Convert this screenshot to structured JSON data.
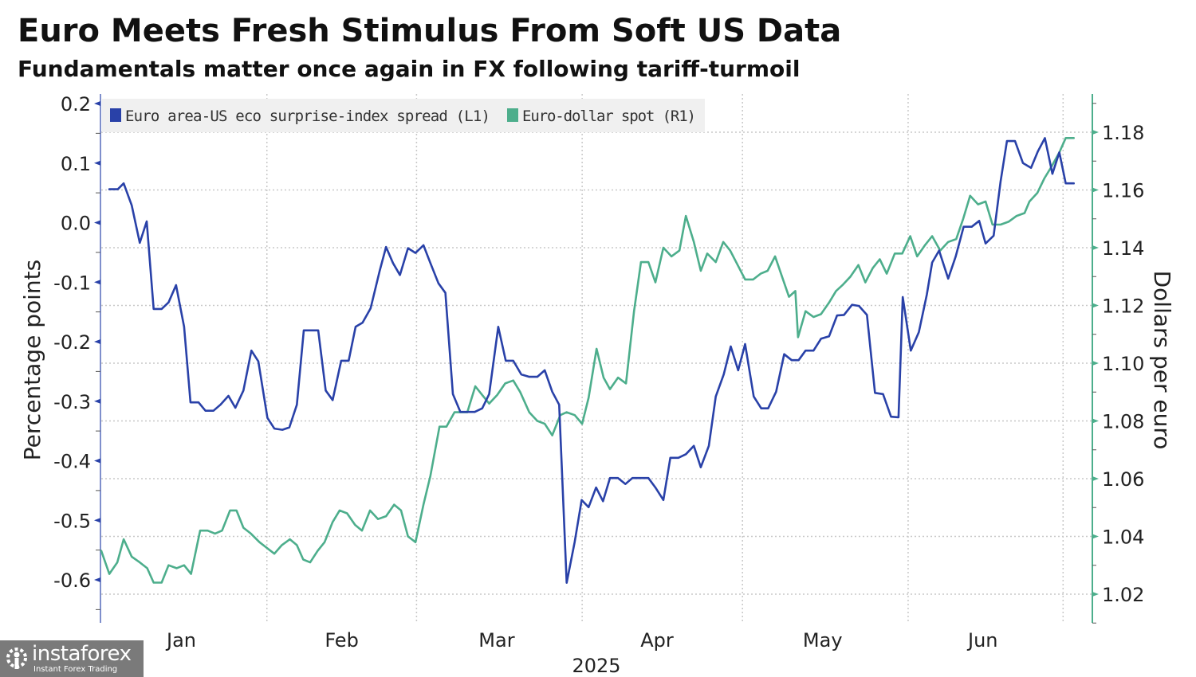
{
  "header": {
    "title": "Euro Meets Fresh Stimulus From Soft US Data",
    "subtitle": "Fundamentals matter once again in FX following tariff-turmoil"
  },
  "watermark": {
    "brand": "instaforex",
    "tagline": "Instant Forex Trading"
  },
  "colors": {
    "series_blue": "#2941a8",
    "series_green": "#4dae8c",
    "gridline": "#c8c8c8",
    "legend_bg": "#f0f0f0"
  },
  "chart_data": {
    "type": "line",
    "title": "Euro Meets Fresh Stimulus From Soft US Data",
    "subtitle": "Fundamentals matter once again in FX following tariff-turmoil",
    "xlabel": "2025",
    "x_unit": "day of year 2025",
    "xlim": [
      0,
      181
    ],
    "x_ticks": [
      {
        "label": "Jan",
        "day": 15
      },
      {
        "label": "Feb",
        "day": 45
      },
      {
        "label": "Mar",
        "day": 74
      },
      {
        "label": "Apr",
        "day": 104
      },
      {
        "label": "May",
        "day": 135
      },
      {
        "label": "Jun",
        "day": 165
      }
    ],
    "x_gridlines_days": [
      31,
      59,
      90,
      120,
      151,
      180
    ],
    "y_left": {
      "label": "Percentage points",
      "ylim": [
        -0.67,
        0.2
      ],
      "ticks": [
        "0.2",
        "0.1",
        "0.0",
        "-0.1",
        "-0.2",
        "-0.3",
        "-0.4",
        "-0.5",
        "-0.6"
      ],
      "tick_values": [
        0.2,
        0.1,
        0.0,
        -0.1,
        -0.2,
        -0.3,
        -0.4,
        -0.5,
        -0.6
      ]
    },
    "y_right": {
      "label": "Dollars per euro",
      "ylim": [
        1.01,
        1.19
      ],
      "ticks": [
        "1.18",
        "1.16",
        "1.14",
        "1.12",
        "1.10",
        "1.08",
        "1.06",
        "1.04",
        "1.02"
      ],
      "tick_values": [
        1.18,
        1.16,
        1.14,
        1.12,
        1.1,
        1.08,
        1.06,
        1.04,
        1.02
      ]
    },
    "grid": true,
    "legend_position": "top-left",
    "series": [
      {
        "name": "Euro area-US eco surprise-index spread (L1)",
        "axis": "left",
        "color": "#2941a8",
        "points": [
          [
            1.5,
            0.056
          ],
          [
            3.1,
            0.056
          ],
          [
            4.2,
            0.066
          ],
          [
            5.7,
            0.029
          ],
          [
            7.2,
            -0.034
          ],
          [
            8.5,
            0.002
          ],
          [
            9.8,
            -0.145
          ],
          [
            11.3,
            -0.145
          ],
          [
            12.6,
            -0.134
          ],
          [
            14.0,
            -0.105
          ],
          [
            15.5,
            -0.175
          ],
          [
            16.7,
            -0.302
          ],
          [
            18.2,
            -0.302
          ],
          [
            19.5,
            -0.316
          ],
          [
            21.0,
            -0.316
          ],
          [
            22.3,
            -0.306
          ],
          [
            23.8,
            -0.291
          ],
          [
            25.1,
            -0.311
          ],
          [
            26.6,
            -0.282
          ],
          [
            28.1,
            -0.215
          ],
          [
            29.4,
            -0.233
          ],
          [
            31.1,
            -0.328
          ],
          [
            32.4,
            -0.346
          ],
          [
            33.9,
            -0.348
          ],
          [
            35.2,
            -0.344
          ],
          [
            36.6,
            -0.306
          ],
          [
            37.9,
            -0.181
          ],
          [
            40.6,
            -0.181
          ],
          [
            42.0,
            -0.282
          ],
          [
            43.3,
            -0.298
          ],
          [
            44.9,
            -0.232
          ],
          [
            46.3,
            -0.232
          ],
          [
            47.6,
            -0.175
          ],
          [
            48.9,
            -0.168
          ],
          [
            50.4,
            -0.144
          ],
          [
            52.1,
            -0.081
          ],
          [
            53.3,
            -0.041
          ],
          [
            54.6,
            -0.068
          ],
          [
            55.9,
            -0.088
          ],
          [
            57.4,
            -0.043
          ],
          [
            58.8,
            -0.051
          ],
          [
            60.3,
            -0.038
          ],
          [
            61.6,
            -0.068
          ],
          [
            63.1,
            -0.102
          ],
          [
            64.4,
            -0.118
          ],
          [
            65.8,
            -0.288
          ],
          [
            67.2,
            -0.318
          ],
          [
            69.9,
            -0.318
          ],
          [
            71.3,
            -0.312
          ],
          [
            72.6,
            -0.288
          ],
          [
            74.3,
            -0.175
          ],
          [
            75.7,
            -0.232
          ],
          [
            77.1,
            -0.232
          ],
          [
            78.6,
            -0.255
          ],
          [
            80.1,
            -0.259
          ],
          [
            81.6,
            -0.259
          ],
          [
            83.0,
            -0.248
          ],
          [
            84.4,
            -0.284
          ],
          [
            85.7,
            -0.306
          ],
          [
            87.1,
            -0.605
          ],
          [
            88.6,
            -0.536
          ],
          [
            89.9,
            -0.466
          ],
          [
            91.2,
            -0.478
          ],
          [
            92.6,
            -0.445
          ],
          [
            93.9,
            -0.468
          ],
          [
            95.2,
            -0.429
          ],
          [
            96.7,
            -0.429
          ],
          [
            98.1,
            -0.439
          ],
          [
            99.4,
            -0.429
          ],
          [
            102.4,
            -0.429
          ],
          [
            103.7,
            -0.445
          ],
          [
            105.2,
            -0.466
          ],
          [
            106.5,
            -0.395
          ],
          [
            108.0,
            -0.395
          ],
          [
            109.4,
            -0.389
          ],
          [
            110.9,
            -0.375
          ],
          [
            112.2,
            -0.411
          ],
          [
            113.7,
            -0.375
          ],
          [
            115.0,
            -0.292
          ],
          [
            116.5,
            -0.255
          ],
          [
            117.8,
            -0.208
          ],
          [
            119.2,
            -0.248
          ],
          [
            120.5,
            -0.204
          ],
          [
            122.1,
            -0.292
          ],
          [
            123.5,
            -0.312
          ],
          [
            124.8,
            -0.312
          ],
          [
            126.3,
            -0.284
          ],
          [
            127.8,
            -0.221
          ],
          [
            129.2,
            -0.231
          ],
          [
            130.5,
            -0.231
          ],
          [
            131.8,
            -0.215
          ],
          [
            133.3,
            -0.215
          ],
          [
            134.7,
            -0.195
          ],
          [
            136.2,
            -0.191
          ],
          [
            137.7,
            -0.156
          ],
          [
            139.0,
            -0.155
          ],
          [
            140.5,
            -0.138
          ],
          [
            141.8,
            -0.14
          ],
          [
            143.3,
            -0.155
          ],
          [
            144.8,
            -0.286
          ],
          [
            146.3,
            -0.288
          ],
          [
            147.8,
            -0.326
          ],
          [
            149.2,
            -0.327
          ],
          [
            150.0,
            -0.125
          ],
          [
            151.5,
            -0.215
          ],
          [
            153.0,
            -0.184
          ],
          [
            154.5,
            -0.121
          ],
          [
            155.5,
            -0.067
          ],
          [
            156.8,
            -0.047
          ],
          [
            158.5,
            -0.094
          ],
          [
            159.9,
            -0.057
          ],
          [
            161.4,
            -0.007
          ],
          [
            162.9,
            -0.007
          ],
          [
            164.3,
            0.003
          ],
          [
            165.5,
            -0.035
          ],
          [
            167.0,
            -0.022
          ],
          [
            168.3,
            0.069
          ],
          [
            169.5,
            0.137
          ],
          [
            171.0,
            0.137
          ],
          [
            172.5,
            0.1
          ],
          [
            174.0,
            0.092
          ],
          [
            175.3,
            0.12
          ],
          [
            176.6,
            0.142
          ],
          [
            178.0,
            0.082
          ],
          [
            179.3,
            0.118
          ],
          [
            180.5,
            0.066
          ],
          [
            182.0,
            0.066
          ]
        ]
      },
      {
        "name": "Euro-dollar spot (R1)",
        "axis": "right",
        "color": "#4dae8c",
        "points": [
          [
            0.0,
            1.035
          ],
          [
            1.5,
            1.027
          ],
          [
            3.0,
            1.031
          ],
          [
            4.2,
            1.039
          ],
          [
            5.7,
            1.033
          ],
          [
            7.2,
            1.031
          ],
          [
            8.6,
            1.029
          ],
          [
            9.8,
            1.024
          ],
          [
            11.3,
            1.024
          ],
          [
            12.6,
            1.03
          ],
          [
            14.1,
            1.029
          ],
          [
            15.5,
            1.03
          ],
          [
            16.8,
            1.027
          ],
          [
            18.5,
            1.042
          ],
          [
            19.9,
            1.042
          ],
          [
            21.3,
            1.041
          ],
          [
            22.6,
            1.042
          ],
          [
            24.1,
            1.049
          ],
          [
            25.3,
            1.049
          ],
          [
            26.6,
            1.043
          ],
          [
            28.0,
            1.041
          ],
          [
            29.6,
            1.038
          ],
          [
            31.0,
            1.036
          ],
          [
            32.4,
            1.034
          ],
          [
            33.8,
            1.037
          ],
          [
            35.3,
            1.039
          ],
          [
            36.6,
            1.037
          ],
          [
            37.8,
            1.032
          ],
          [
            39.1,
            1.031
          ],
          [
            40.5,
            1.035
          ],
          [
            41.8,
            1.038
          ],
          [
            43.3,
            1.045
          ],
          [
            44.6,
            1.049
          ],
          [
            46.0,
            1.048
          ],
          [
            47.5,
            1.044
          ],
          [
            48.8,
            1.042
          ],
          [
            50.3,
            1.049
          ],
          [
            51.8,
            1.046
          ],
          [
            53.3,
            1.047
          ],
          [
            54.8,
            1.051
          ],
          [
            56.1,
            1.049
          ],
          [
            57.4,
            1.04
          ],
          [
            58.8,
            1.038
          ],
          [
            60.3,
            1.051
          ],
          [
            61.6,
            1.061
          ],
          [
            63.3,
            1.078
          ],
          [
            64.6,
            1.078
          ],
          [
            66.1,
            1.083
          ],
          [
            68.5,
            1.083
          ],
          [
            70.0,
            1.092
          ],
          [
            71.3,
            1.089
          ],
          [
            72.6,
            1.086
          ],
          [
            74.1,
            1.089
          ],
          [
            75.6,
            1.093
          ],
          [
            77.1,
            1.094
          ],
          [
            78.4,
            1.09
          ],
          [
            80.1,
            1.083
          ],
          [
            81.6,
            1.08
          ],
          [
            83.0,
            1.079
          ],
          [
            84.4,
            1.075
          ],
          [
            85.9,
            1.082
          ],
          [
            87.1,
            1.083
          ],
          [
            88.6,
            1.082
          ],
          [
            90.0,
            1.079
          ],
          [
            91.2,
            1.088
          ],
          [
            92.7,
            1.105
          ],
          [
            94.0,
            1.095
          ],
          [
            95.2,
            1.091
          ],
          [
            96.7,
            1.095
          ],
          [
            98.2,
            1.093
          ],
          [
            99.7,
            1.118
          ],
          [
            101.0,
            1.135
          ],
          [
            102.4,
            1.135
          ],
          [
            103.7,
            1.128
          ],
          [
            105.2,
            1.14
          ],
          [
            106.7,
            1.137
          ],
          [
            108.2,
            1.139
          ],
          [
            109.4,
            1.151
          ],
          [
            110.9,
            1.142
          ],
          [
            112.2,
            1.132
          ],
          [
            113.4,
            1.138
          ],
          [
            115.0,
            1.135
          ],
          [
            116.4,
            1.142
          ],
          [
            117.7,
            1.139
          ],
          [
            119.1,
            1.134
          ],
          [
            120.5,
            1.129
          ],
          [
            122.0,
            1.129
          ],
          [
            123.4,
            1.131
          ],
          [
            124.7,
            1.132
          ],
          [
            126.1,
            1.137
          ],
          [
            127.4,
            1.13
          ],
          [
            128.7,
            1.123
          ],
          [
            129.9,
            1.125
          ],
          [
            130.4,
            1.109
          ],
          [
            131.8,
            1.118
          ],
          [
            133.3,
            1.116
          ],
          [
            134.7,
            1.117
          ],
          [
            136.2,
            1.121
          ],
          [
            137.5,
            1.125
          ],
          [
            138.7,
            1.127
          ],
          [
            140.2,
            1.13
          ],
          [
            141.7,
            1.134
          ],
          [
            143.0,
            1.128
          ],
          [
            144.4,
            1.133
          ],
          [
            145.7,
            1.136
          ],
          [
            147.0,
            1.131
          ],
          [
            148.5,
            1.138
          ],
          [
            149.9,
            1.138
          ],
          [
            151.4,
            1.144
          ],
          [
            152.7,
            1.137
          ],
          [
            154.2,
            1.141
          ],
          [
            155.5,
            1.144
          ],
          [
            157.0,
            1.139
          ],
          [
            158.5,
            1.142
          ],
          [
            160.0,
            1.143
          ],
          [
            161.3,
            1.15
          ],
          [
            162.6,
            1.158
          ],
          [
            164.1,
            1.155
          ],
          [
            165.5,
            1.156
          ],
          [
            166.8,
            1.148
          ],
          [
            168.3,
            1.148
          ],
          [
            169.8,
            1.149
          ],
          [
            171.3,
            1.151
          ],
          [
            172.8,
            1.152
          ],
          [
            173.7,
            1.156
          ],
          [
            175.2,
            1.159
          ],
          [
            176.5,
            1.164
          ],
          [
            177.8,
            1.168
          ],
          [
            179.3,
            1.173
          ],
          [
            180.5,
            1.178
          ],
          [
            182.0,
            1.178
          ]
        ]
      }
    ]
  }
}
